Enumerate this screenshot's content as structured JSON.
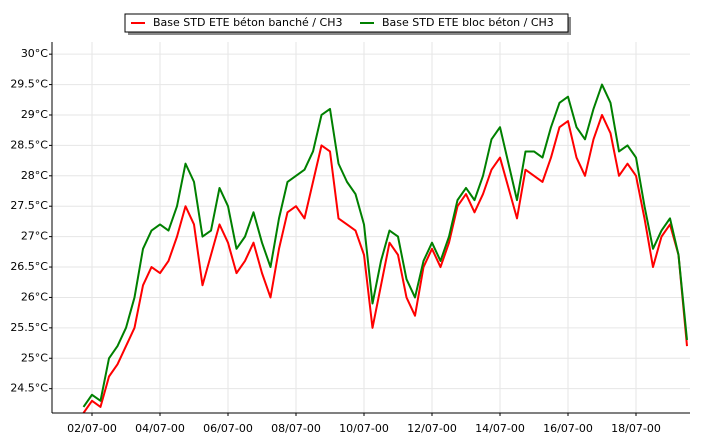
{
  "chart_data": {
    "type": "line",
    "categories": [
      null,
      null,
      null,
      null,
      "02/07-00",
      null,
      null,
      null,
      null,
      null,
      null,
      null,
      "04/07-00",
      null,
      null,
      null,
      null,
      null,
      null,
      null,
      "06/07-00",
      null,
      null,
      null,
      null,
      null,
      null,
      null,
      "08/07-00",
      null,
      null,
      null,
      null,
      null,
      null,
      null,
      "10/07-00",
      null,
      null,
      null,
      null,
      null,
      null,
      null,
      "12/07-00",
      null,
      null,
      null,
      null,
      null,
      null,
      null,
      "14/07-00",
      null,
      null,
      null,
      null,
      null,
      null,
      null,
      "16/07-00",
      null,
      null,
      null,
      null,
      null,
      null,
      null,
      "18/07-00",
      null,
      null,
      null,
      null,
      null,
      null
    ],
    "series": [
      {
        "name": "Base STD ETE béton banché / CH3",
        "color": "#ff0000",
        "values": [
          null,
          null,
          null,
          24.1,
          24.3,
          24.2,
          24.7,
          24.9,
          25.2,
          25.5,
          26.2,
          26.5,
          26.4,
          26.6,
          27.0,
          27.5,
          27.2,
          26.2,
          26.7,
          27.2,
          26.9,
          26.4,
          26.6,
          26.9,
          26.4,
          26.0,
          26.8,
          27.4,
          27.5,
          27.3,
          27.9,
          28.5,
          28.4,
          27.3,
          27.2,
          27.1,
          26.7,
          25.5,
          26.2,
          26.9,
          26.7,
          26.0,
          25.7,
          26.5,
          26.8,
          26.5,
          26.9,
          27.5,
          27.7,
          27.4,
          27.7,
          28.1,
          28.3,
          27.8,
          27.3,
          28.1,
          28.0,
          27.9,
          28.3,
          28.8,
          28.9,
          28.3,
          28.0,
          28.6,
          29.0,
          28.7,
          28.0,
          28.2,
          28.0,
          27.3,
          26.5,
          27.0,
          27.2,
          26.7,
          25.2
        ]
      },
      {
        "name": "Base STD ETE bloc béton / CH3",
        "color": "#008000",
        "values": [
          null,
          null,
          null,
          24.2,
          24.4,
          24.3,
          25.0,
          25.2,
          25.5,
          26.0,
          26.8,
          27.1,
          27.2,
          27.1,
          27.5,
          28.2,
          27.9,
          27.0,
          27.1,
          27.8,
          27.5,
          26.8,
          27.0,
          27.4,
          26.9,
          26.5,
          27.3,
          27.9,
          28.0,
          28.1,
          28.4,
          29.0,
          29.1,
          28.2,
          27.9,
          27.7,
          27.2,
          25.9,
          26.6,
          27.1,
          27.0,
          26.3,
          26.0,
          26.6,
          26.9,
          26.6,
          27.0,
          27.6,
          27.8,
          27.6,
          28.0,
          28.6,
          28.8,
          28.2,
          27.6,
          28.4,
          28.4,
          28.3,
          28.8,
          29.2,
          29.3,
          28.8,
          28.6,
          29.1,
          29.5,
          29.2,
          28.4,
          28.5,
          28.3,
          27.5,
          26.8,
          27.1,
          27.3,
          26.7,
          25.3
        ]
      }
    ],
    "ylim": [
      24.1,
      30.2
    ],
    "yticks": [
      {
        "value": 24.5,
        "label": "24.5°C"
      },
      {
        "value": 25,
        "label": "25°C"
      },
      {
        "value": 25.5,
        "label": "25.5°C"
      },
      {
        "value": 26,
        "label": "26°C"
      },
      {
        "value": 26.5,
        "label": "26.5°C"
      },
      {
        "value": 27,
        "label": "27°C"
      },
      {
        "value": 27.5,
        "label": "27.5°C"
      },
      {
        "value": 28,
        "label": "28°C"
      },
      {
        "value": 28.5,
        "label": "28.5°C"
      },
      {
        "value": 29,
        "label": "29°C"
      },
      {
        "value": 29.5,
        "label": "29.5°C"
      },
      {
        "value": 30,
        "label": "30°C"
      }
    ],
    "grid": true
  }
}
